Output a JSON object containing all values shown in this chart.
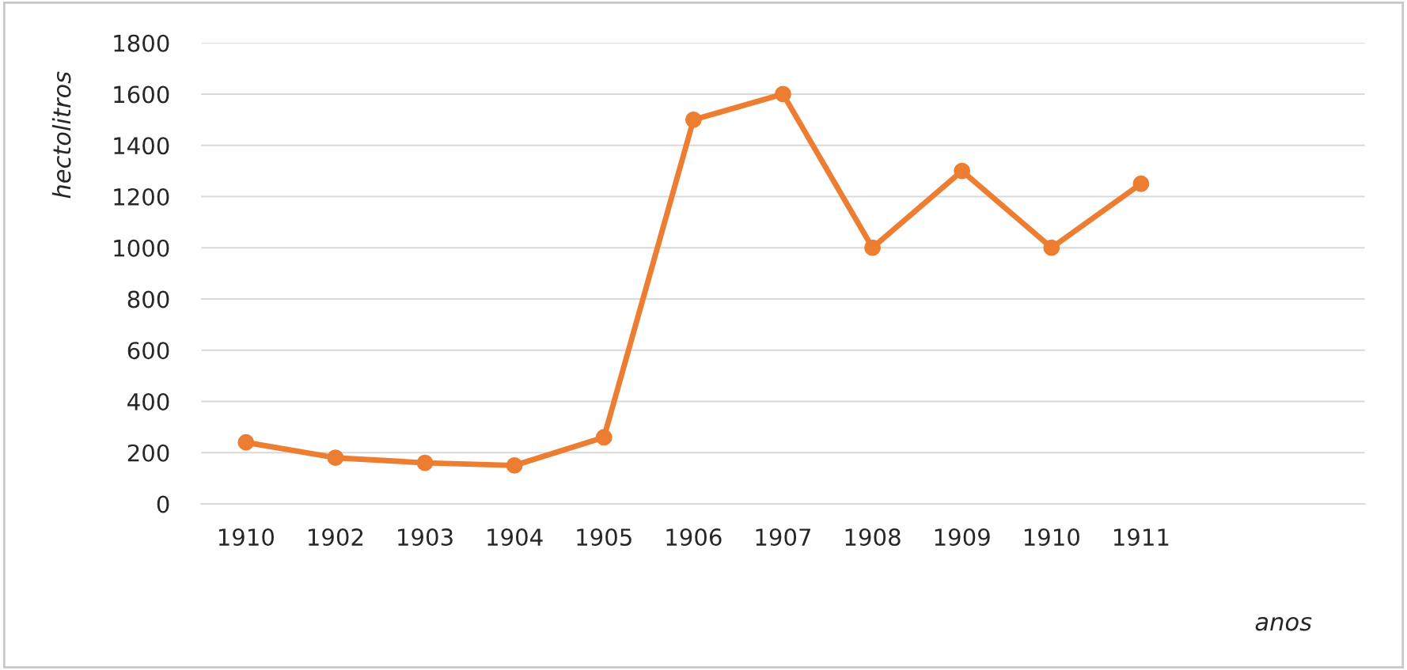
{
  "chart_data": {
    "type": "line",
    "xlabel": "anos",
    "ylabel": "hectolitros",
    "categories": [
      "1910",
      "1902",
      "1903",
      "1904",
      "1905",
      "1906",
      "1907",
      "1908",
      "1909",
      "1910",
      "1911",
      null,
      null
    ],
    "series": [
      {
        "color": "#ed7d31",
        "values": [
          240,
          180,
          160,
          150,
          260,
          1500,
          1600,
          1000,
          1300,
          1000,
          1250,
          null,
          null
        ]
      }
    ],
    "ylim": [
      0,
      1800
    ],
    "yticks": [
      0,
      200,
      400,
      600,
      800,
      1000,
      1200,
      1400,
      1600,
      1800
    ],
    "grid": "y",
    "marker": "circle",
    "line_style": "solid",
    "legend": false
  }
}
